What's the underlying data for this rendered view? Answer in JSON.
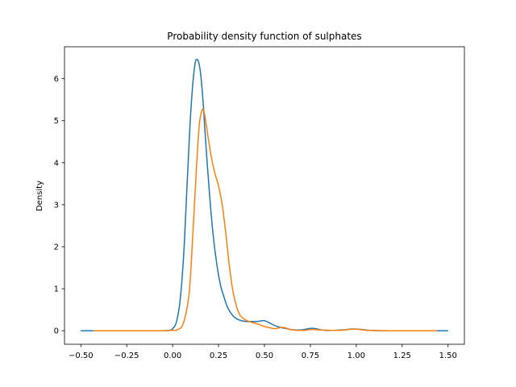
{
  "chart_data": {
    "type": "line",
    "title": "Probability density function of sulphates",
    "xlabel": "",
    "ylabel": "Density",
    "xlim": [
      -0.589,
      1.589
    ],
    "ylim": [
      -0.322,
      6.76
    ],
    "xticks": [
      -0.5,
      -0.25,
      0.0,
      0.25,
      0.5,
      0.75,
      1.0,
      1.25,
      1.5
    ],
    "xtick_labels": [
      "−0.50",
      "−0.25",
      "0.00",
      "0.25",
      "0.50",
      "0.75",
      "1.00",
      "1.25",
      "1.50"
    ],
    "yticks": [
      0,
      1,
      2,
      3,
      4,
      5,
      6
    ],
    "ytick_labels": [
      "0",
      "1",
      "2",
      "3",
      "4",
      "5",
      "6"
    ],
    "grid": false,
    "colors": [
      "#1f77b4",
      "#ff7f0e"
    ],
    "series": [
      {
        "color": "#1f77b4",
        "x": [
          -0.5,
          -0.3,
          -0.1,
          -0.02,
          0.0,
          0.02,
          0.04,
          0.06,
          0.08,
          0.1,
          0.12,
          0.135,
          0.15,
          0.165,
          0.18,
          0.2,
          0.22,
          0.24,
          0.26,
          0.28,
          0.3,
          0.33,
          0.36,
          0.4,
          0.43,
          0.46,
          0.5,
          0.53,
          0.57,
          0.62,
          0.66,
          0.7,
          0.74,
          0.76,
          0.79,
          0.83,
          0.88,
          0.93,
          0.97,
          1.0,
          1.03,
          1.08,
          1.2,
          1.35,
          1.5
        ],
        "y": [
          0.0,
          0.0,
          0.0,
          0.01,
          0.05,
          0.2,
          0.7,
          1.8,
          3.6,
          5.3,
          6.3,
          6.45,
          6.2,
          5.5,
          4.5,
          3.3,
          2.3,
          1.6,
          1.1,
          0.8,
          0.55,
          0.35,
          0.26,
          0.22,
          0.22,
          0.22,
          0.24,
          0.18,
          0.1,
          0.05,
          0.02,
          0.02,
          0.05,
          0.06,
          0.04,
          0.01,
          0.01,
          0.02,
          0.04,
          0.04,
          0.03,
          0.01,
          0.0,
          0.0,
          0.0
        ]
      },
      {
        "color": "#ff7f0e",
        "x": [
          -0.43,
          -0.2,
          -0.05,
          0.0,
          0.03,
          0.06,
          0.09,
          0.11,
          0.13,
          0.145,
          0.16,
          0.17,
          0.18,
          0.19,
          0.21,
          0.23,
          0.25,
          0.27,
          0.29,
          0.31,
          0.33,
          0.35,
          0.37,
          0.4,
          0.43,
          0.47,
          0.5,
          0.53,
          0.56,
          0.58,
          0.6,
          0.62,
          0.65,
          0.68,
          0.72,
          0.76,
          0.8,
          0.86,
          0.92,
          0.96,
          0.99,
          1.02,
          1.06,
          1.2,
          1.3,
          1.44
        ],
        "y": [
          0.0,
          0.0,
          0.0,
          0.01,
          0.03,
          0.2,
          0.9,
          2.3,
          3.9,
          4.9,
          5.25,
          5.22,
          5.0,
          4.7,
          4.15,
          3.75,
          3.45,
          3.0,
          2.3,
          1.5,
          0.9,
          0.55,
          0.35,
          0.25,
          0.2,
          0.15,
          0.1,
          0.07,
          0.05,
          0.07,
          0.08,
          0.06,
          0.02,
          0.01,
          0.01,
          0.03,
          0.02,
          0.01,
          0.01,
          0.03,
          0.04,
          0.03,
          0.01,
          0.0,
          0.0,
          0.0
        ]
      }
    ]
  }
}
